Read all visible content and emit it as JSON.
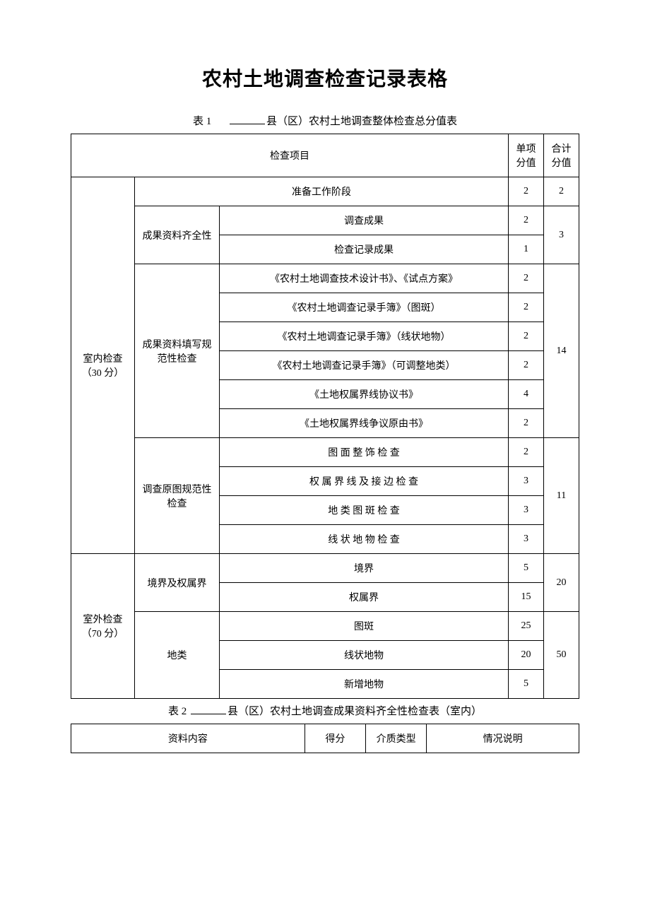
{
  "document": {
    "title": "农村土地调查检查记录表格",
    "table1": {
      "caption_label": "表 1",
      "caption_text": "县（区）农村土地调查整体检查总分值表",
      "header": {
        "item": "检查项目",
        "single_score": "单项分值",
        "total_score": "合计分值"
      },
      "sections": {
        "indoor": {
          "label": "室内检查（30 分）",
          "prep": {
            "label": "准备工作阶段",
            "score": "2",
            "total": "2"
          },
          "completeness": {
            "label": "成果资料齐全性",
            "rows": [
              {
                "item": "调查成果",
                "score": "2"
              },
              {
                "item": "检查记录成果",
                "score": "1"
              }
            ],
            "total": "3"
          },
          "normative": {
            "label": "成果资料填写规范性检查",
            "rows": [
              {
                "item": "《农村土地调查技术设计书》、《试点方案》",
                "score": "2"
              },
              {
                "item": "《农村土地调查记录手簿》（图斑）",
                "score": "2"
              },
              {
                "item": "《农村土地调查记录手簿》（线状地物）",
                "score": "2"
              },
              {
                "item": "《农村土地调查记录手簿》（可调整地类）",
                "score": "2"
              },
              {
                "item": "《土地权属界线协议书》",
                "score": "4"
              },
              {
                "item": "《土地权属界线争议原由书》",
                "score": "2"
              }
            ],
            "total": "14"
          },
          "original_map": {
            "label": "调查原图规范性检查",
            "rows": [
              {
                "item": "图 面 整 饰 检 查",
                "score": "2"
              },
              {
                "item": "权 属 界 线 及 接 边 检 查",
                "score": "3"
              },
              {
                "item": "地 类 图 斑 检 查",
                "score": "3"
              },
              {
                "item": "线 状 地 物 检 查",
                "score": "3"
              }
            ],
            "total": "11"
          }
        },
        "outdoor": {
          "label": "室外检查（70 分）",
          "boundary": {
            "label": "境界及权属界",
            "rows": [
              {
                "item": "境界",
                "score": "5"
              },
              {
                "item": "权属界",
                "score": "15"
              }
            ],
            "total": "20"
          },
          "land_type": {
            "label": "地类",
            "rows": [
              {
                "item": "图斑",
                "score": "25"
              },
              {
                "item": "线状地物",
                "score": "20"
              },
              {
                "item": "新增地物",
                "score": "5"
              }
            ],
            "total": "50"
          }
        }
      }
    },
    "table2": {
      "caption_label": "表 2",
      "caption_text": "县（区）农村土地调查成果资料齐全性检查表（室内）",
      "header": {
        "content": "资料内容",
        "score": "得分",
        "media_type": "介质类型",
        "notes": "情况说明"
      }
    }
  },
  "style": {
    "text_color": "#000000",
    "background_color": "#ffffff",
    "border_color": "#000000",
    "title_fontsize": 28,
    "body_fontsize": 14
  }
}
